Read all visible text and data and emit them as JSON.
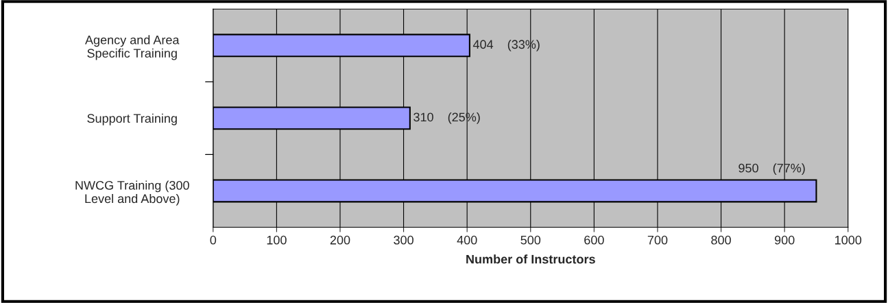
{
  "chart_data": {
    "type": "bar",
    "orientation": "horizontal",
    "categories": [
      "Agency and Area\nSpecific Training",
      "Support Training",
      "NWCG Training (300\nLevel and Above)"
    ],
    "values": [
      404,
      310,
      950
    ],
    "value_labels": [
      "404    (33%)",
      "310    (25%)",
      "950    (77%)"
    ],
    "color": "#9999ff",
    "xlabel": "Number of Instructors",
    "xlim": [
      0,
      1000
    ],
    "xticks": [
      0,
      100,
      200,
      300,
      400,
      500,
      600,
      700,
      800,
      900,
      1000
    ],
    "grid": "x"
  }
}
